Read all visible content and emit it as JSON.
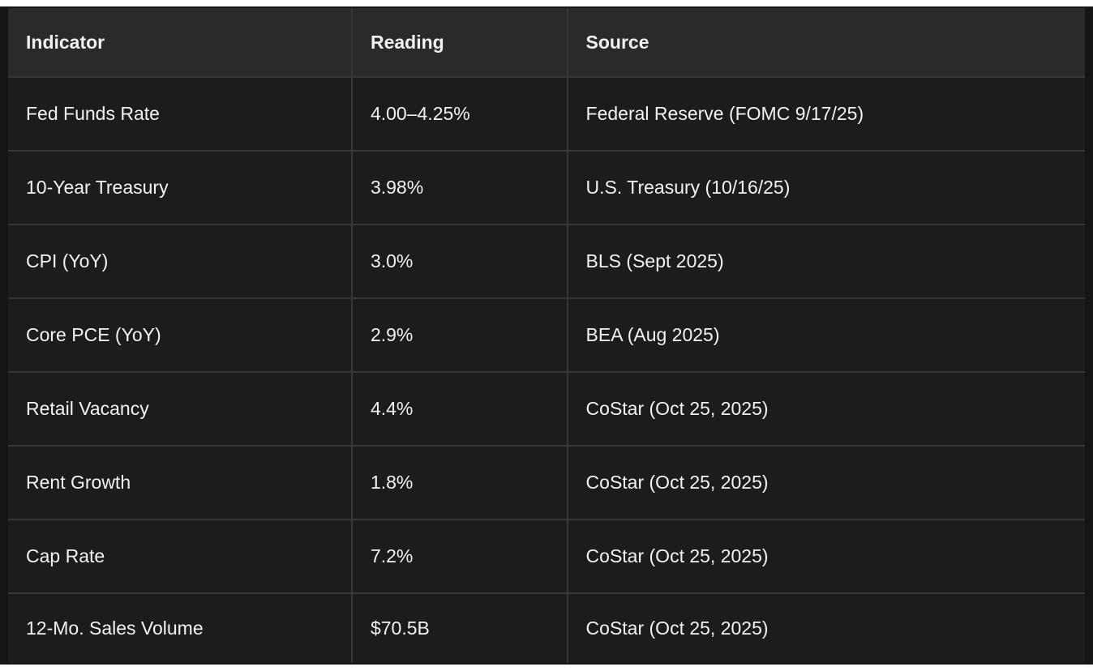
{
  "table": {
    "columns": [
      "Indicator",
      "Reading",
      "Source"
    ],
    "rows": [
      [
        "Fed Funds Rate",
        "4.00–4.25%",
        "Federal Reserve (FOMC 9/17/25)"
      ],
      [
        "10-Year Treasury",
        "3.98%",
        "U.S. Treasury (10/16/25)"
      ],
      [
        "CPI (YoY)",
        "3.0%",
        "BLS (Sept 2025)"
      ],
      [
        "Core PCE (YoY)",
        "2.9%",
        "BEA (Aug 2025)"
      ],
      [
        "Retail Vacancy",
        "4.4%",
        "CoStar (Oct 25, 2025)"
      ],
      [
        "Rent Growth",
        "1.8%",
        "CoStar (Oct 25, 2025)"
      ],
      [
        "Cap Rate",
        "7.2%",
        "CoStar (Oct 25, 2025)"
      ],
      [
        "12-Mo. Sales Volume",
        "$70.5B",
        "CoStar (Oct 25, 2025)"
      ]
    ]
  },
  "colors": {
    "page_bg": "#ffffff",
    "frame_bg": "#151517",
    "header_bg": "#2a2a2c",
    "row_bg": "#1c1c1e",
    "divider": "#37373a",
    "text": "#f2f2f2"
  }
}
